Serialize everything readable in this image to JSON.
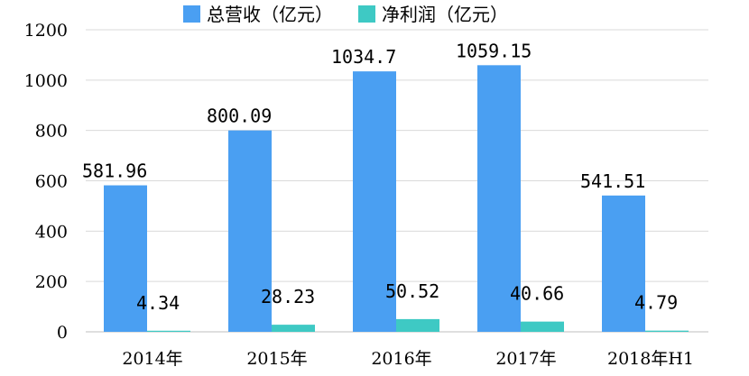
{
  "chart_data": {
    "type": "bar",
    "categories": [
      "2014年",
      "2015年",
      "2016年",
      "2017年",
      "2018年H1"
    ],
    "series": [
      {
        "name": "总营收（亿元）",
        "color": "#4a9ff2",
        "values": [
          581.96,
          800.09,
          1034.7,
          1059.15,
          541.51
        ],
        "labels": [
          "581.96",
          "800.09",
          "1034.7",
          "1059.15",
          "541.51"
        ]
      },
      {
        "name": "净利润（亿元）",
        "color": "#3ec9c4",
        "values": [
          4.34,
          28.23,
          50.52,
          40.66,
          4.79
        ],
        "labels": [
          "4.34",
          "28.23",
          "50.52",
          "40.66",
          "4.79"
        ]
      }
    ],
    "ylim": [
      0,
      1200
    ],
    "yticks": [
      "0",
      "200",
      "400",
      "600",
      "800",
      "1000",
      "1200"
    ],
    "grid": true,
    "legend_position": "top"
  }
}
